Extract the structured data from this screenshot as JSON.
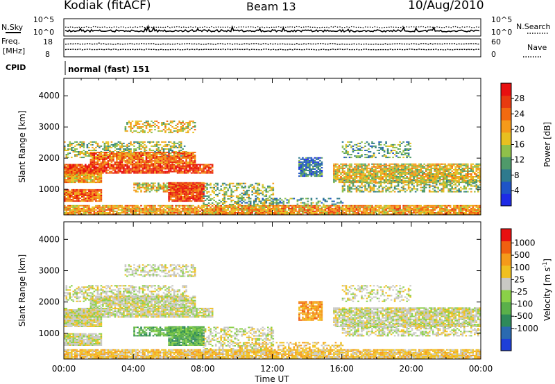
{
  "header": {
    "station": "Kodiak (fitACF)",
    "beam": "Beam 13",
    "date": "10/Aug/2010"
  },
  "summary_panels": {
    "nsky": {
      "left_label": "N.Sky",
      "right_label": "N.Search",
      "left_ticks": [
        "10^5",
        "10^0"
      ],
      "right_ticks": [
        "10^5",
        "10^0"
      ]
    },
    "freq": {
      "left_label_line1": "Freq.",
      "left_label_line2": "[MHz]",
      "right_label": "Nave",
      "left_ticks": [
        "18",
        "8"
      ],
      "right_ticks": [
        "60",
        "0"
      ]
    },
    "cpid": {
      "label": "CPID",
      "program": "normal (fast) 151"
    }
  },
  "chart_data": [
    {
      "type": "heatmap",
      "name": "power",
      "ylabel": "Slant Range [km]",
      "xlabel": "",
      "yticks": [
        1000,
        2000,
        3000,
        4000
      ],
      "ylim": [
        180,
        4560
      ],
      "xlim_hours": [
        0,
        24
      ],
      "colorbar": {
        "label": "Power [dB]",
        "range": [
          0,
          32
        ],
        "ticks": [
          4,
          8,
          12,
          16,
          20,
          24,
          28
        ],
        "colors": [
          "#1e2be6",
          "#1f54c8",
          "#2f7a8e",
          "#4f9a6a",
          "#8fc04a",
          "#e8c020",
          "#f59a1a",
          "#f26a10",
          "#e83a10",
          "#e81010"
        ]
      },
      "grid": false
    },
    {
      "type": "heatmap",
      "name": "velocity",
      "ylabel": "Slant Range [km]",
      "xlabel": "Time UT",
      "xticks": [
        "00:00",
        "04:00",
        "08:00",
        "12:00",
        "16:00",
        "20:00",
        "00:00"
      ],
      "yticks": [
        1000,
        2000,
        3000,
        4000
      ],
      "ylim": [
        180,
        4560
      ],
      "xlim_hours": [
        0,
        24
      ],
      "colorbar": {
        "label": "Velocity [m s^-1]",
        "tick_labels": [
          "1000",
          "500",
          "100",
          "25",
          "-25",
          "-100",
          "-500",
          "-1000"
        ],
        "colors": [
          "#1e3fd8",
          "#2a6ab0",
          "#2e8a5a",
          "#5ab04a",
          "#8ad048",
          "#c8c8c4",
          "#f0c020",
          "#f59a1a",
          "#f06010",
          "#e81010"
        ]
      },
      "grid": false
    }
  ]
}
